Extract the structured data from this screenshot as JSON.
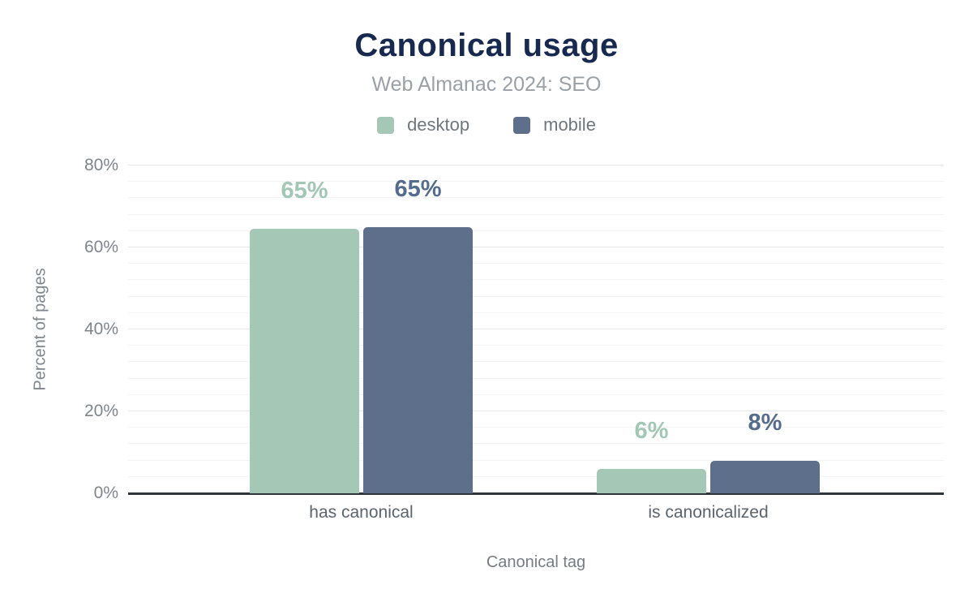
{
  "chart_data": {
    "type": "bar",
    "title": "Canonical usage",
    "subtitle": "Web Almanac 2024: SEO",
    "categories": [
      "has canonical",
      "is canonicalized"
    ],
    "series": [
      {
        "name": "desktop",
        "color": "#a5c8b6",
        "label_color": "#a3c7b5",
        "values": [
          64.5,
          6
        ],
        "labels": [
          "65%",
          "6%"
        ]
      },
      {
        "name": "mobile",
        "color": "#5d6f8b",
        "label_color": "#566c8d",
        "values": [
          65,
          8
        ],
        "labels": [
          "65%",
          "8%"
        ]
      }
    ],
    "xlabel": "Canonical tag",
    "ylabel": "Percent of pages",
    "ylim": [
      0,
      80
    ],
    "y_major_step": 20,
    "y_minor_step": 4,
    "y_ticks": [
      "0%",
      "20%",
      "40%",
      "60%",
      "80%"
    ],
    "grid": true,
    "legend_position": "top",
    "colors": {
      "title": "#17294e",
      "subtitle": "#9aa0a6",
      "axis_line": "#2f353b",
      "gridline_major": "#e5e8ea",
      "gridline_minor": "#f2f3f5"
    }
  }
}
